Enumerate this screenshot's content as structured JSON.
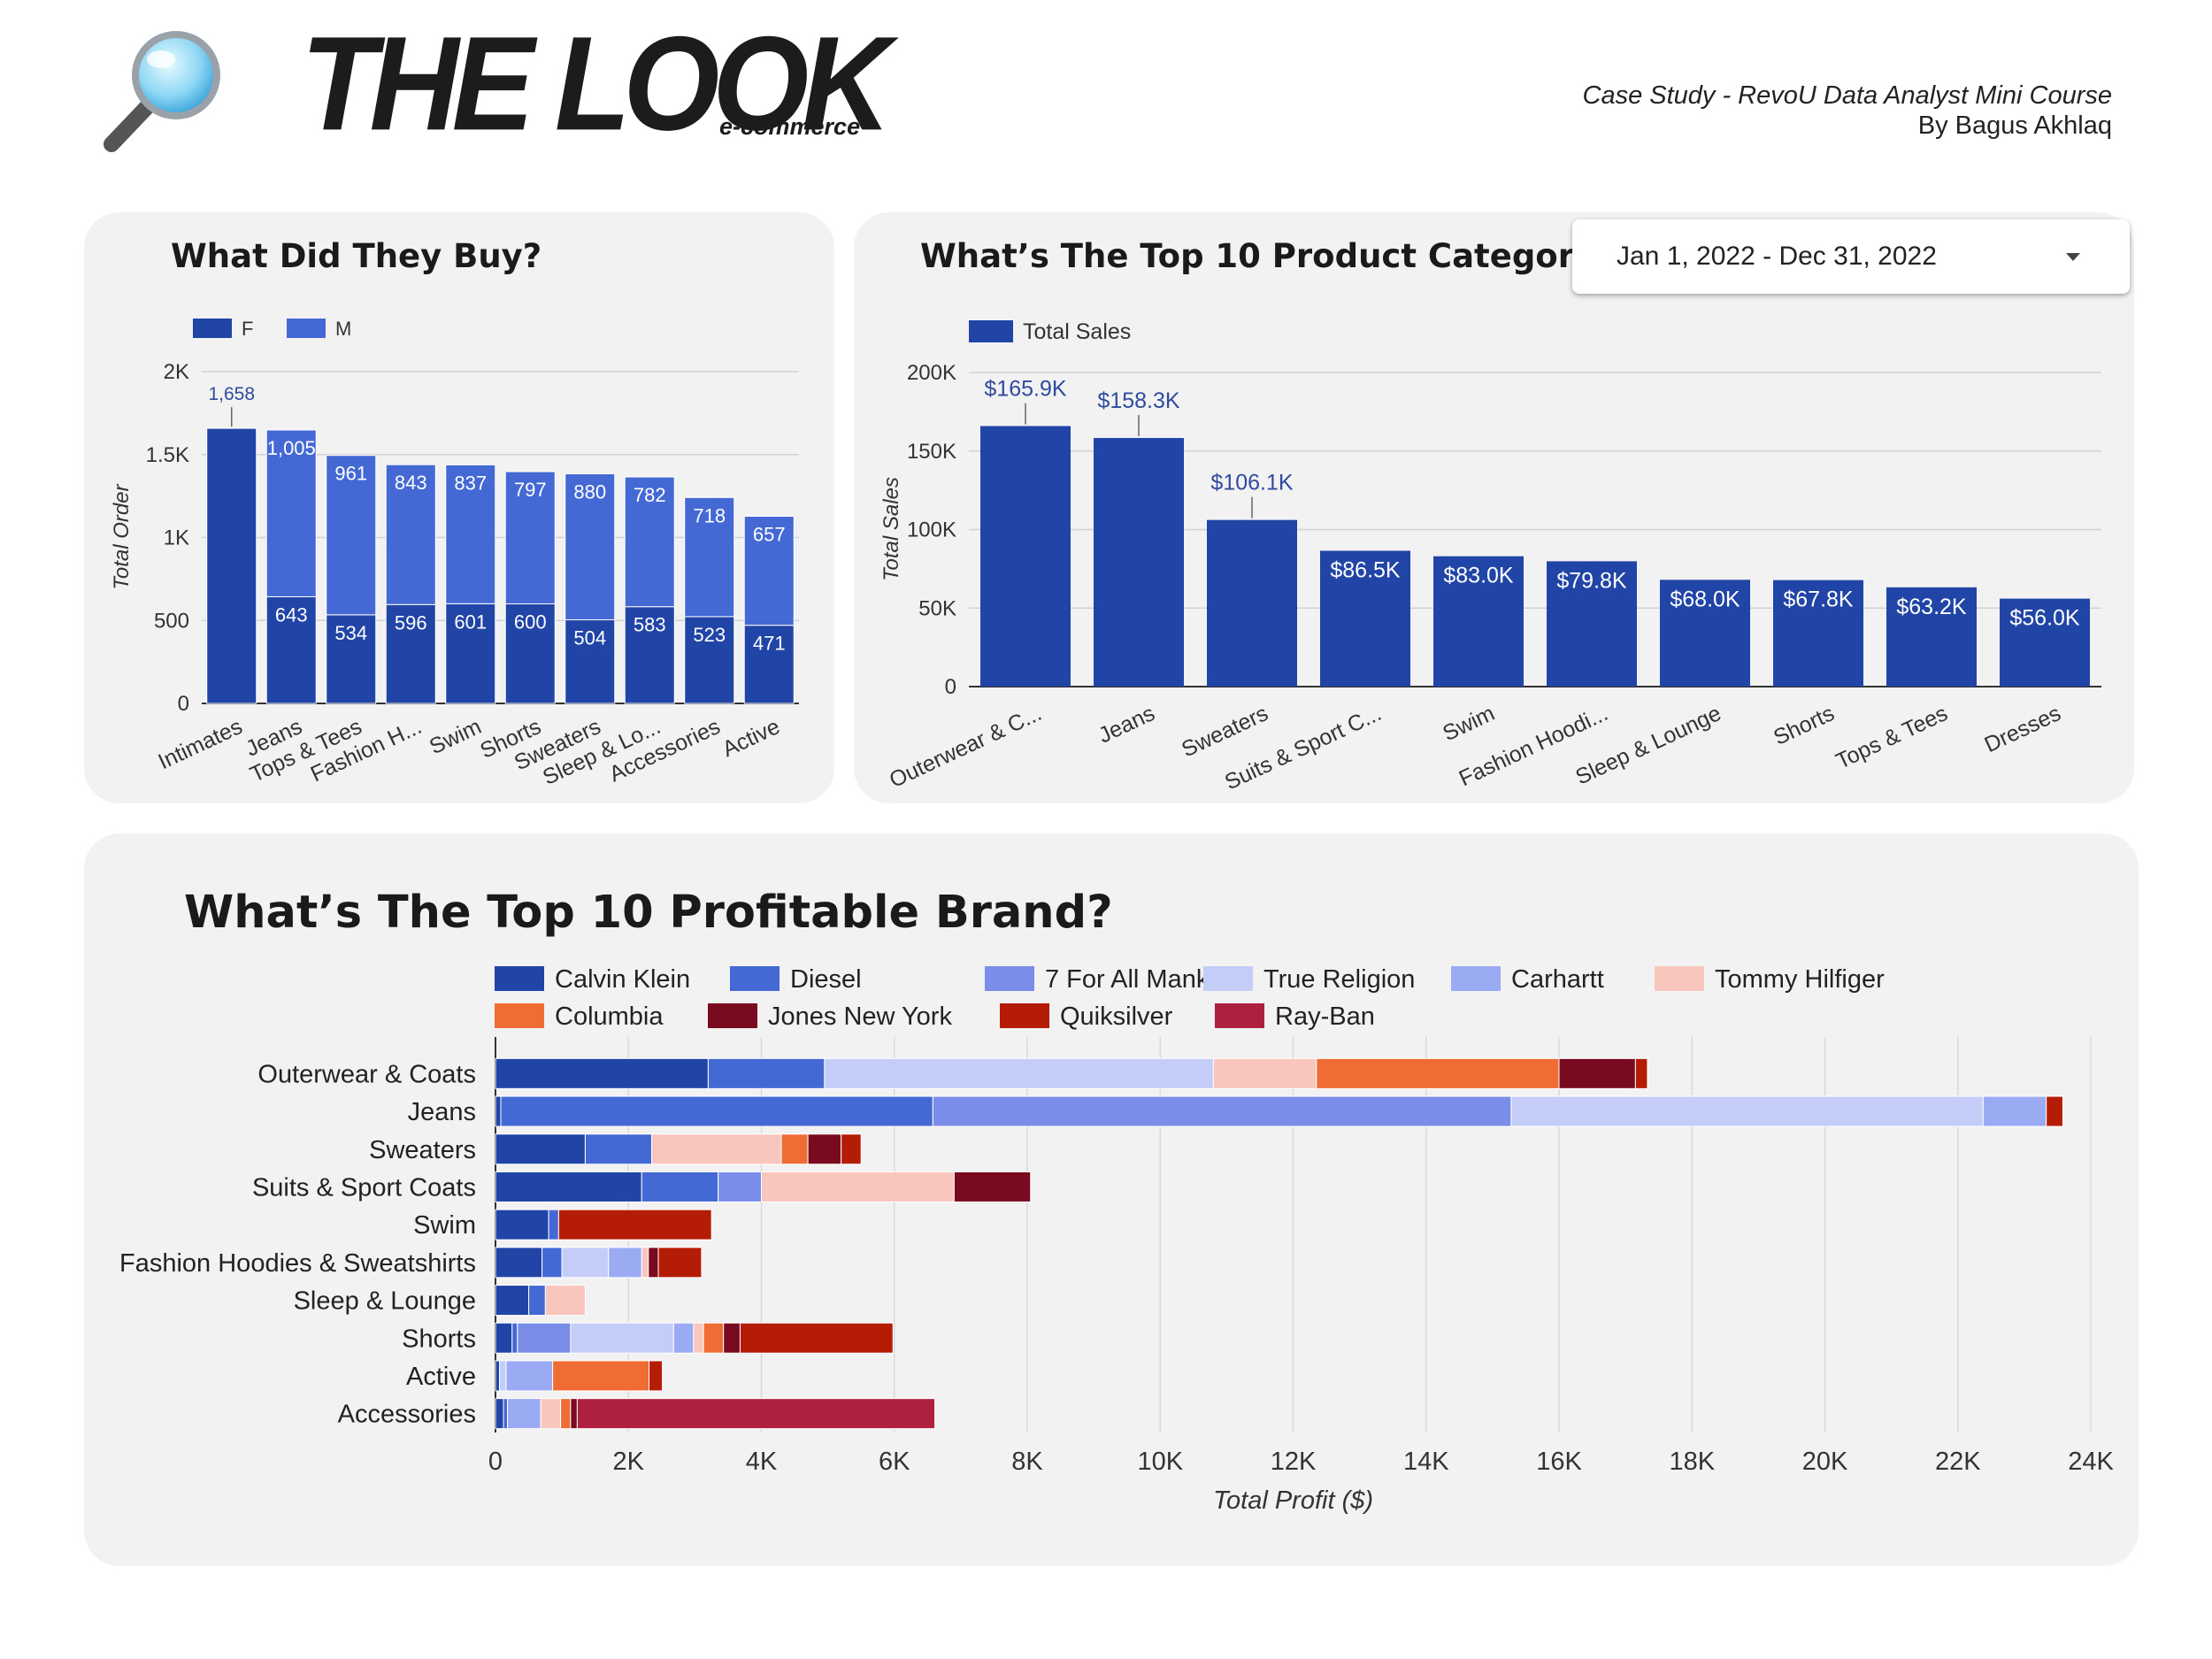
{
  "header": {
    "logo_icon": "magnifying-glass-icon",
    "title": "THE LOOK",
    "subtitle": "e-commerce",
    "case_study": "Case Study - RevoU Data Analyst Mini Course",
    "author": "By Bagus Akhlaq"
  },
  "date_filter": {
    "value": "Jan 1, 2022 - Dec 31, 2022",
    "icon": "dropdown-caret-icon"
  },
  "colors": {
    "F": "#2145a6",
    "M": "#4569d4",
    "total_sales": "#2145a6",
    "label_blue": "#2f4a9e",
    "panel_bg": "#f2f2f2"
  },
  "chart_data": [
    {
      "id": "buy",
      "type": "bar",
      "stacked": true,
      "title": "What Did They Buy?",
      "xlabel": "",
      "ylabel": "Total Order",
      "ylim": [
        0,
        2000
      ],
      "yticks": [
        0,
        500,
        1000,
        1500,
        2000
      ],
      "ytick_labels": [
        "0",
        "500",
        "1K",
        "1.5K",
        "2K"
      ],
      "legend_position": "top-left",
      "categories": [
        "Intimates",
        "Jeans",
        "Tops & Tees",
        "Fashion H...",
        "Swim",
        "Shorts",
        "Sweaters",
        "Sleep & Lo...",
        "Accessories",
        "Active"
      ],
      "series": [
        {
          "name": "F",
          "color": "#2145a6",
          "values": [
            1658,
            643,
            534,
            596,
            601,
            600,
            504,
            583,
            523,
            471
          ],
          "labels": [
            "1,658",
            "643",
            "534",
            "596",
            "601",
            "600",
            "504",
            "583",
            "523",
            "471"
          ]
        },
        {
          "name": "M",
          "color": "#4569d4",
          "values": [
            0,
            1005,
            961,
            843,
            837,
            797,
            880,
            782,
            718,
            657
          ],
          "labels": [
            "",
            "1,005",
            "961",
            "843",
            "837",
            "797",
            "880",
            "782",
            "718",
            "657"
          ]
        }
      ]
    },
    {
      "id": "cat",
      "type": "bar",
      "title": "What’s The Top 10 Product Category?",
      "xlabel": "",
      "ylabel": "Total Sales",
      "ylim": [
        0,
        200000
      ],
      "yticks": [
        0,
        50000,
        100000,
        150000,
        200000
      ],
      "ytick_labels": [
        "0",
        "50K",
        "100K",
        "150K",
        "200K"
      ],
      "legend_position": "top-left",
      "categories": [
        "Outerwear & C...",
        "Jeans",
        "Sweaters",
        "Suits & Sport C...",
        "Swim",
        "Fashion Hoodi...",
        "Sleep & Lounge",
        "Shorts",
        "Tops & Tees",
        "Dresses"
      ],
      "series": [
        {
          "name": "Total Sales",
          "color": "#2145a6",
          "values": [
            165900,
            158300,
            106100,
            86500,
            83000,
            79800,
            68000,
            67800,
            63200,
            56000
          ],
          "labels": [
            "$165.9K",
            "$158.3K",
            "$106.1K",
            "$86.5K",
            "$83.0K",
            "$79.8K",
            "$68.0K",
            "$67.8K",
            "$63.2K",
            "$56.0K"
          ]
        }
      ]
    },
    {
      "id": "brand",
      "type": "bar",
      "orientation": "horizontal",
      "stacked": true,
      "title": "What’s The Top 10 Profitable Brand?",
      "xlabel": "Total Profit ($)",
      "ylabel": "",
      "xlim": [
        0,
        24000
      ],
      "xticks": [
        0,
        2000,
        4000,
        6000,
        8000,
        10000,
        12000,
        14000,
        16000,
        18000,
        20000,
        22000,
        24000
      ],
      "xtick_labels": [
        "0",
        "2K",
        "4K",
        "6K",
        "8K",
        "10K",
        "12K",
        "14K",
        "16K",
        "18K",
        "20K",
        "22K",
        "24K"
      ],
      "legend_position": "top",
      "categories": [
        "Outerwear & Coats",
        "Jeans",
        "Sweaters",
        "Suits & Sport Coats",
        "Swim",
        "Fashion Hoodies & Sweatshirts",
        "Sleep & Lounge",
        "Shorts",
        "Active",
        "Accessories"
      ],
      "series": [
        {
          "name": "Calvin Klein",
          "color": "#2145a6",
          "values": [
            3200,
            80,
            1350,
            2200,
            800,
            700,
            500,
            250,
            60,
            120
          ]
        },
        {
          "name": "Diesel",
          "color": "#4569d4",
          "values": [
            1750,
            6500,
            1000,
            1150,
            150,
            300,
            250,
            80,
            0,
            60
          ]
        },
        {
          "name": "7 For All Mankind",
          "color": "#7a8de8",
          "values": [
            0,
            8700,
            0,
            650,
            0,
            0,
            0,
            800,
            0,
            0
          ]
        },
        {
          "name": "True Religion",
          "color": "#c3cdf8",
          "values": [
            5850,
            7100,
            0,
            0,
            0,
            700,
            0,
            1550,
            100,
            0
          ]
        },
        {
          "name": "Carhartt",
          "color": "#9aaaf3",
          "values": [
            0,
            950,
            0,
            0,
            0,
            500,
            0,
            300,
            700,
            500
          ]
        },
        {
          "name": "Tommy Hilfiger",
          "color": "#f8c6bd",
          "values": [
            1550,
            0,
            1950,
            2900,
            0,
            100,
            600,
            150,
            0,
            300
          ]
        },
        {
          "name": "Columbia",
          "color": "#ef6c35",
          "values": [
            3650,
            0,
            400,
            0,
            0,
            0,
            0,
            300,
            1450,
            150
          ]
        },
        {
          "name": "Jones New York",
          "color": "#7a0a1f",
          "values": [
            1150,
            0,
            500,
            1150,
            0,
            150,
            0,
            250,
            0,
            100
          ]
        },
        {
          "name": "Quiksilver",
          "color": "#b51c06",
          "values": [
            180,
            250,
            300,
            0,
            2300,
            650,
            0,
            2300,
            200,
            0
          ]
        },
        {
          "name": "Ray-Ban",
          "color": "#ae2040",
          "values": [
            0,
            0,
            0,
            0,
            0,
            0,
            0,
            0,
            0,
            5380
          ]
        }
      ]
    }
  ]
}
